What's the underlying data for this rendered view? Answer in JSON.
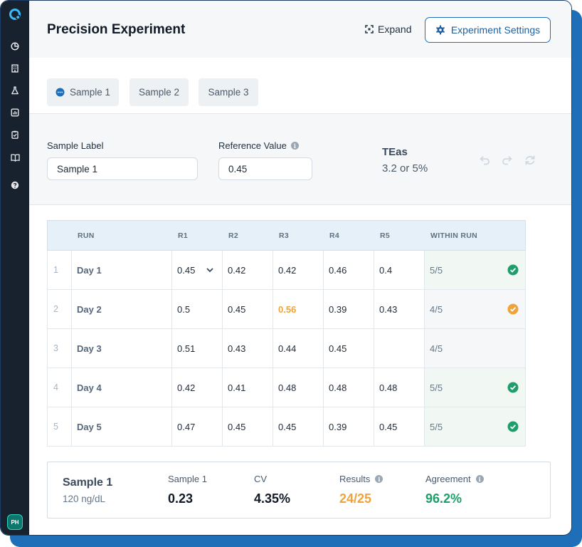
{
  "header": {
    "title": "Precision Experiment",
    "expand_label": "Expand",
    "settings_label": "Experiment Settings"
  },
  "sidebar": {
    "items": [
      {
        "name": "pie-chart-icon"
      },
      {
        "name": "building-icon"
      },
      {
        "name": "flask-icon"
      },
      {
        "name": "bar-chart-icon"
      },
      {
        "name": "clipboard-check-icon"
      },
      {
        "name": "book-icon"
      },
      {
        "name": "help-icon"
      }
    ],
    "avatar_initials": "PH"
  },
  "tabs": [
    {
      "label": "Sample 1",
      "active": true
    },
    {
      "label": "Sample 2",
      "active": false
    },
    {
      "label": "Sample 3",
      "active": false
    }
  ],
  "form": {
    "sample_label": "Sample Label",
    "sample_value": "Sample 1",
    "reference_label": "Reference Value",
    "reference_value": "0.45",
    "teas_title": "TEas",
    "teas_value": "3.2 or 5%"
  },
  "table": {
    "headers": [
      "RUN",
      "R1",
      "R2",
      "R3",
      "R4",
      "R5",
      "WITHIN RUN"
    ],
    "rows": [
      {
        "index": "1",
        "run": "Day 1",
        "values": [
          "0.45",
          "0.42",
          "0.42",
          "0.46",
          "0.4"
        ],
        "within": "5/5",
        "status": "ok"
      },
      {
        "index": "2",
        "run": "Day 2",
        "values": [
          "0.5",
          "0.45",
          "0.56",
          "0.39",
          "0.43"
        ],
        "within": "4/5",
        "status": "warn",
        "flagged": 2
      },
      {
        "index": "3",
        "run": "Day 3",
        "values": [
          "0.51",
          "0.43",
          "0.44",
          "0.45",
          ""
        ],
        "within": "4/5",
        "status": "none"
      },
      {
        "index": "4",
        "run": "Day 4",
        "values": [
          "0.42",
          "0.41",
          "0.48",
          "0.48",
          "0.48"
        ],
        "within": "5/5",
        "status": "ok"
      },
      {
        "index": "5",
        "run": "Day 5",
        "values": [
          "0.47",
          "0.45",
          "0.45",
          "0.39",
          "0.45"
        ],
        "within": "5/5",
        "status": "ok"
      }
    ]
  },
  "summary": {
    "name": "Sample 1",
    "sub": "120 ng/dL",
    "metrics": [
      {
        "label": "Sample 1",
        "value": "0.23",
        "color": "default",
        "info": false
      },
      {
        "label": "CV",
        "value": "4.35%",
        "color": "default",
        "info": false
      },
      {
        "label": "Results",
        "value": "24/25",
        "color": "orange",
        "info": true
      },
      {
        "label": "Agreement",
        "value": "96.2%",
        "color": "green",
        "info": true
      }
    ]
  },
  "colors": {
    "accent": "#1f6fb8",
    "ok": "#1e9e6a",
    "warn": "#f0a33a",
    "sidebar": "#18222f"
  }
}
